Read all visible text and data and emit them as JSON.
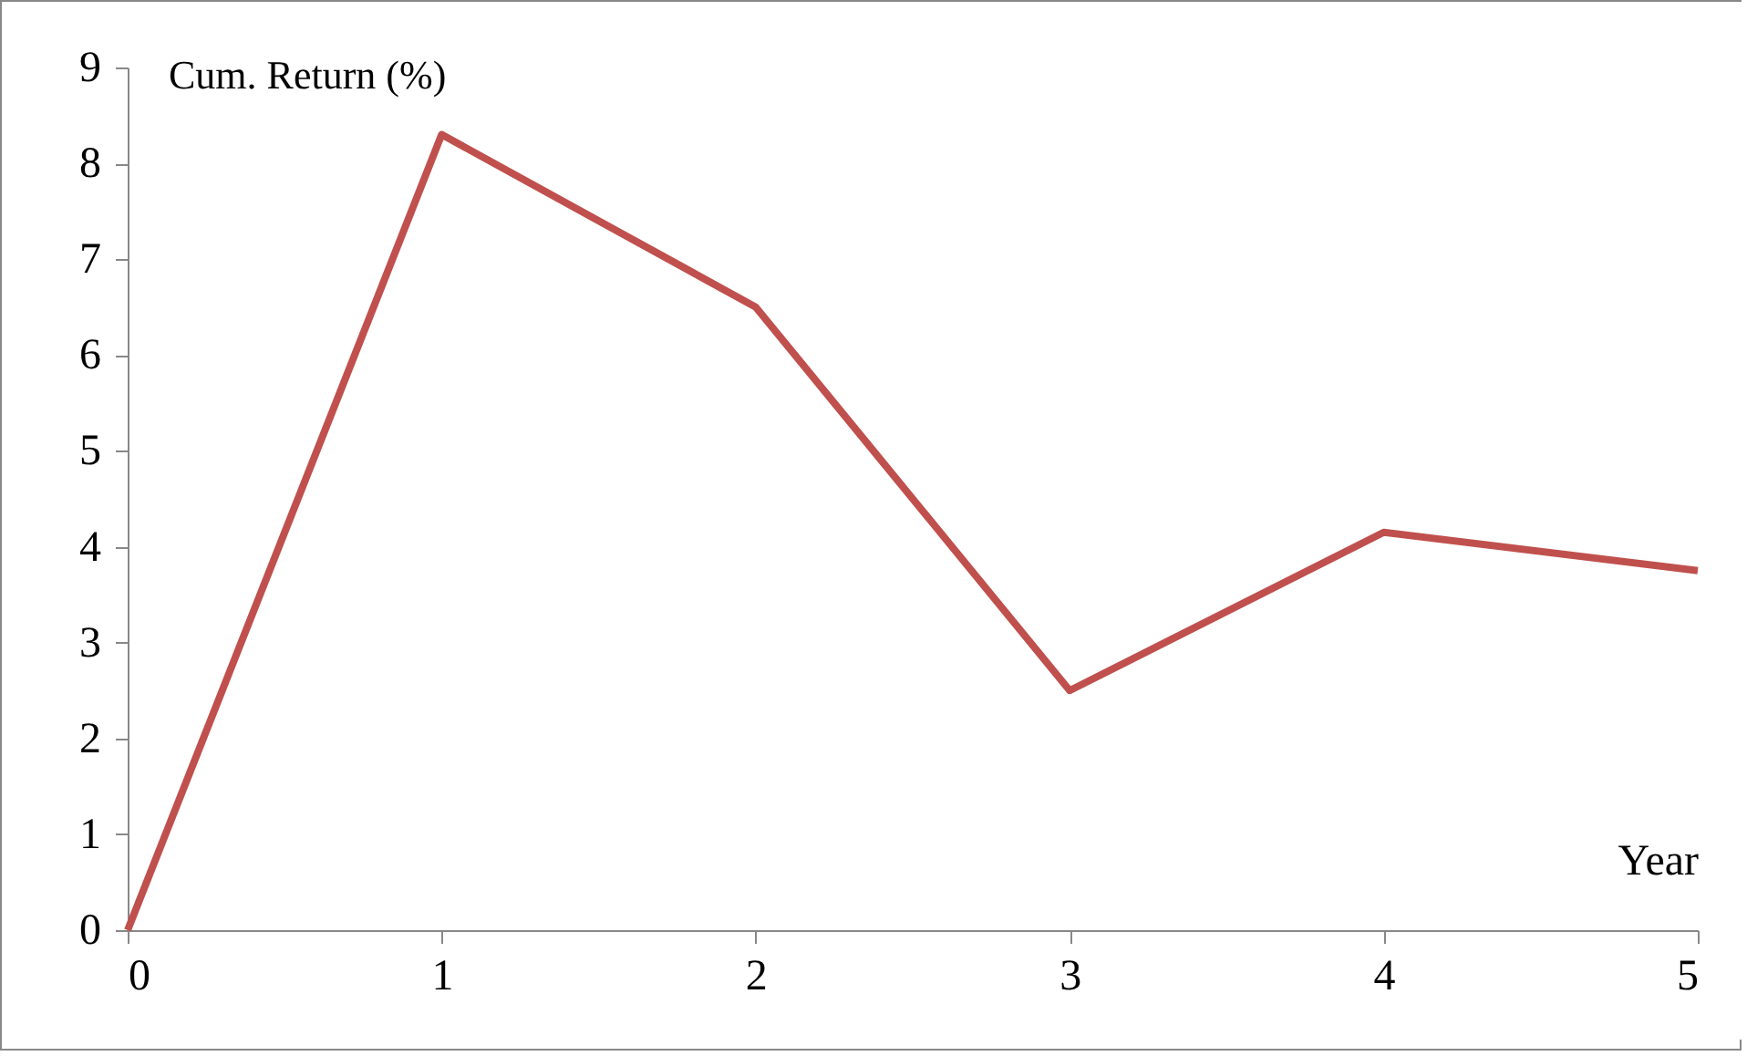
{
  "chart_data": {
    "type": "line",
    "xlabel": "Year",
    "ylabel": "Cum. Return (%)",
    "x": [
      0,
      1,
      2,
      3,
      4,
      5
    ],
    "series": [
      {
        "color": "#c0504d",
        "values": [
          0,
          8.3,
          6.5,
          2.5,
          4.15,
          3.75
        ]
      }
    ],
    "xlim": [
      0,
      5
    ],
    "xticks": [
      0,
      1,
      2,
      3,
      4,
      5
    ],
    "ylim": [
      0,
      9
    ],
    "yticks": [
      0,
      1,
      2,
      3,
      4,
      5,
      6,
      7,
      8,
      9
    ],
    "grid": false
  }
}
